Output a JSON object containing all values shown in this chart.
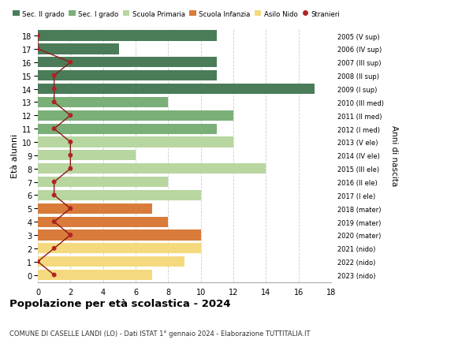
{
  "ages": [
    18,
    17,
    16,
    15,
    14,
    13,
    12,
    11,
    10,
    9,
    8,
    7,
    6,
    5,
    4,
    3,
    2,
    1,
    0
  ],
  "right_labels": [
    "2005 (V sup)",
    "2006 (IV sup)",
    "2007 (III sup)",
    "2008 (II sup)",
    "2009 (I sup)",
    "2010 (III med)",
    "2011 (II med)",
    "2012 (I med)",
    "2013 (V ele)",
    "2014 (IV ele)",
    "2015 (III ele)",
    "2016 (II ele)",
    "2017 (I ele)",
    "2018 (mater)",
    "2019 (mater)",
    "2020 (mater)",
    "2021 (nido)",
    "2022 (nido)",
    "2023 (nido)"
  ],
  "bar_values": [
    11,
    5,
    11,
    11,
    17,
    8,
    12,
    11,
    12,
    6,
    14,
    8,
    10,
    7,
    8,
    10,
    10,
    9,
    7
  ],
  "bar_colors": [
    "#4a7c59",
    "#4a7c59",
    "#4a7c59",
    "#4a7c59",
    "#4a7c59",
    "#7aaf78",
    "#7aaf78",
    "#7aaf78",
    "#b8d6a0",
    "#b8d6a0",
    "#b8d6a0",
    "#b8d6a0",
    "#b8d6a0",
    "#d97b3a",
    "#d97b3a",
    "#d97b3a",
    "#f5d97e",
    "#f5d97e",
    "#f5d97e"
  ],
  "stranieri_values": [
    0,
    0,
    2,
    1,
    1,
    1,
    2,
    1,
    2,
    2,
    2,
    1,
    1,
    2,
    1,
    2,
    1,
    0,
    1
  ],
  "legend_labels": [
    "Sec. II grado",
    "Sec. I grado",
    "Scuola Primaria",
    "Scuola Infanzia",
    "Asilo Nido",
    "Stranieri"
  ],
  "legend_colors": [
    "#4a7c59",
    "#7aaf78",
    "#b8d6a0",
    "#d97b3a",
    "#f5d97e",
    "#b22222"
  ],
  "ylabel_left": "Età alunni",
  "ylabel_right": "Anni di nascita",
  "title": "Popolazione per età scolastica - 2024",
  "subtitle": "COMUNE DI CASELLE LANDI (LO) - Dati ISTAT 1° gennaio 2024 - Elaborazione TUTTITALIA.IT",
  "xlim": [
    0,
    18
  ],
  "background_color": "#ffffff",
  "grid_color": "#cccccc"
}
